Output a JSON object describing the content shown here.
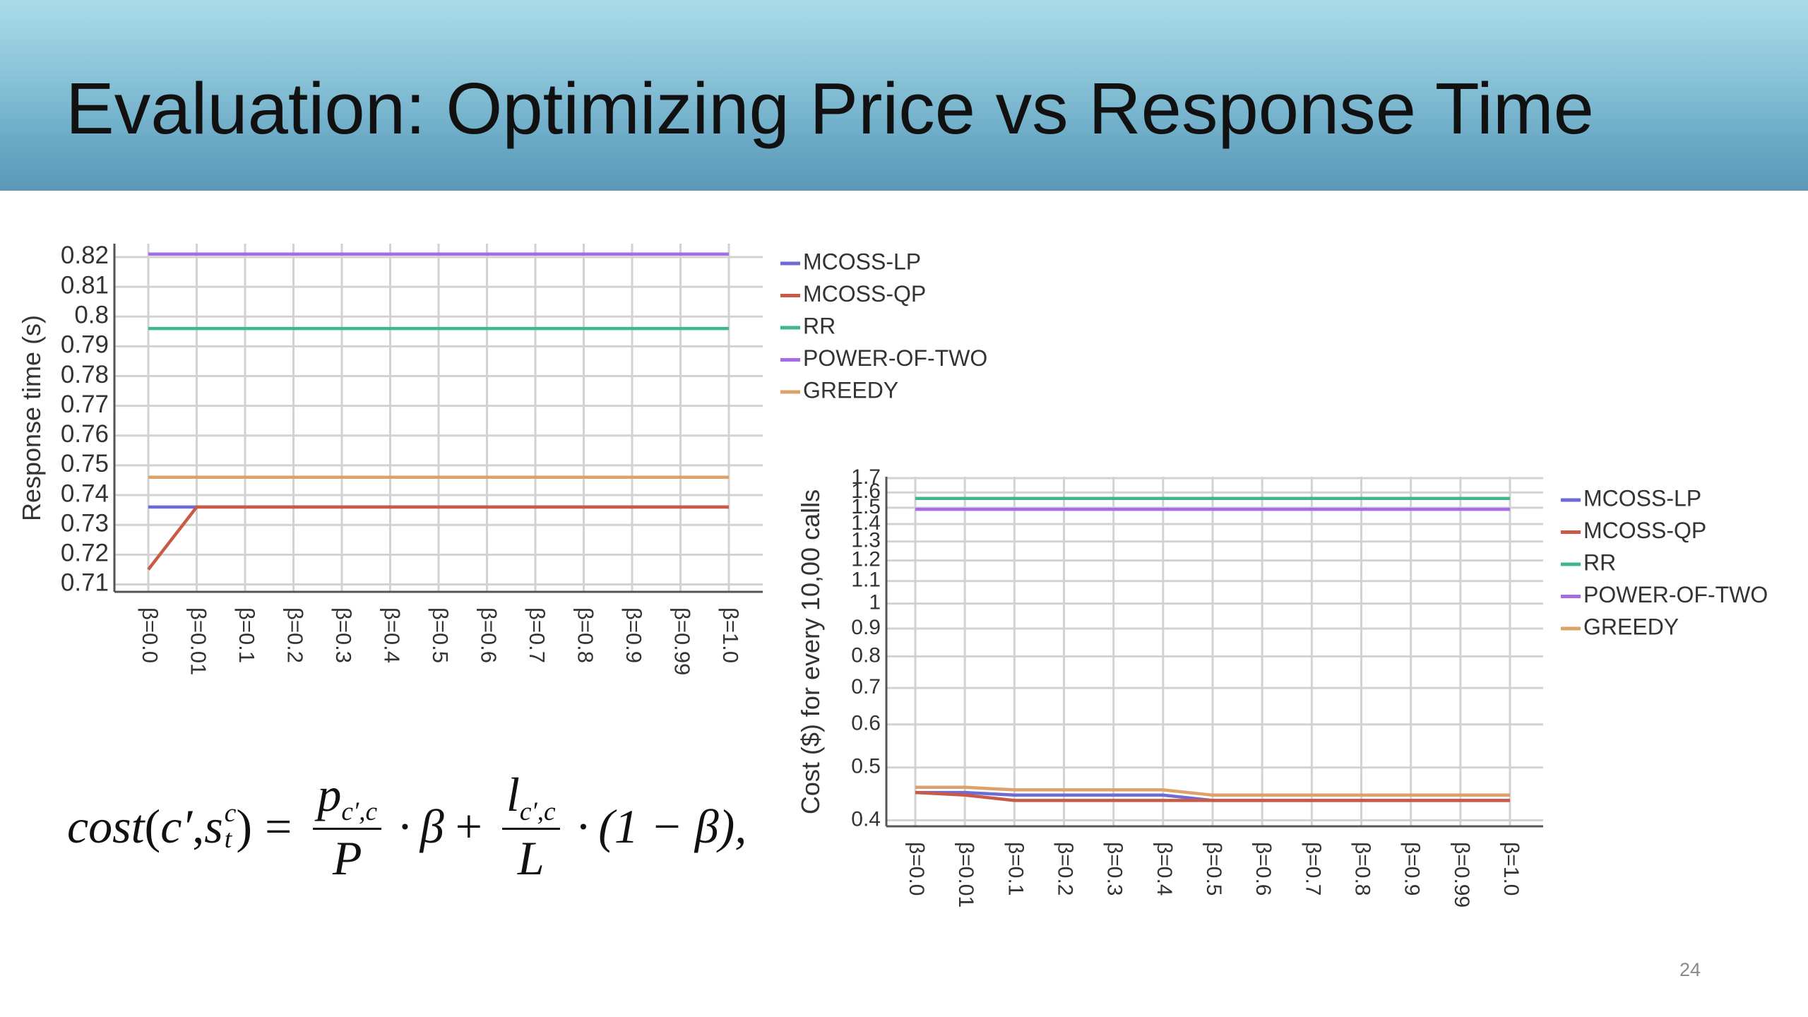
{
  "slide": {
    "title": "Evaluation: Optimizing Price vs Response Time",
    "page_number": "24"
  },
  "formula": {
    "lhs_func": "cost",
    "lhs_open": "(",
    "lhs_arg1": "c′",
    "lhs_comma": ",",
    "lhs_arg2_base": "s",
    "lhs_arg2_sup": "c",
    "lhs_arg2_sub": "t",
    "lhs_close": ")",
    "equals": "=",
    "frac1_num_base": "p",
    "frac1_num_sub": "c′,c",
    "frac1_den": "P",
    "dot1": "·",
    "beta1": "β",
    "plus": "+",
    "frac2_num_base": "l",
    "frac2_num_sub": "c′,c",
    "frac2_den": "L",
    "dot2": "·",
    "tail": "(1 − β),"
  },
  "colors": {
    "MCOSS-LP": "#6d6bd6",
    "MCOSS-QP": "#c95a45",
    "RR": "#3cb88a",
    "POWER-OF-TWO": "#a66ce6",
    "GREEDY": "#dca26a"
  },
  "chart_data": [
    {
      "type": "line",
      "title": "",
      "xlabel": "",
      "ylabel": "Response time (s)",
      "categories": [
        "β=0.0",
        "β=0.01",
        "β=0.1",
        "β=0.2",
        "β=0.3",
        "β=0.4",
        "β=0.5",
        "β=0.6",
        "β=0.7",
        "β=0.8",
        "β=0.9",
        "β=0.99",
        "β=1.0"
      ],
      "yticks": [
        "0.71",
        "0.72",
        "0.73",
        "0.74",
        "0.75",
        "0.76",
        "0.77",
        "0.78",
        "0.79",
        "0.8",
        "0.81",
        "0.82"
      ],
      "ylim": [
        0.7075,
        0.8245
      ],
      "grid": true,
      "legend_position": "top-right-outside",
      "series": [
        {
          "name": "MCOSS-LP",
          "values": [
            0.736,
            0.736,
            0.736,
            0.736,
            0.736,
            0.736,
            0.736,
            0.736,
            0.736,
            0.736,
            0.736,
            0.736,
            0.736
          ]
        },
        {
          "name": "MCOSS-QP",
          "values": [
            0.715,
            0.736,
            0.736,
            0.736,
            0.736,
            0.736,
            0.736,
            0.736,
            0.736,
            0.736,
            0.736,
            0.736,
            0.736
          ]
        },
        {
          "name": "RR",
          "values": [
            0.796,
            0.796,
            0.796,
            0.796,
            0.796,
            0.796,
            0.796,
            0.796,
            0.796,
            0.796,
            0.796,
            0.796,
            0.796
          ]
        },
        {
          "name": "POWER-OF-TWO",
          "values": [
            0.821,
            0.821,
            0.821,
            0.821,
            0.821,
            0.821,
            0.821,
            0.821,
            0.821,
            0.821,
            0.821,
            0.821,
            0.821
          ]
        },
        {
          "name": "GREEDY",
          "values": [
            0.746,
            0.746,
            0.746,
            0.746,
            0.746,
            0.746,
            0.746,
            0.746,
            0.746,
            0.746,
            0.746,
            0.746,
            0.746
          ]
        }
      ]
    },
    {
      "type": "line",
      "title": "",
      "xlabel": "",
      "ylabel": "Cost ($) for every 10,00 calls",
      "categories": [
        "β=0.0",
        "β=0.01",
        "β=0.1",
        "β=0.2",
        "β=0.3",
        "β=0.4",
        "β=0.5",
        "β=0.6",
        "β=0.7",
        "β=0.8",
        "β=0.9",
        "β=0.99",
        "β=1.0"
      ],
      "yticks": [
        "0.4",
        "0.5",
        "0.6",
        "0.7",
        "0.8",
        "0.9",
        "1",
        "1.1",
        "1.2",
        "1.3",
        "1.4",
        "1.5",
        "1.6",
        "1.7"
      ],
      "ylim": [
        0.39,
        1.71
      ],
      "y_scale": "log",
      "grid": true,
      "legend_position": "right",
      "series": [
        {
          "name": "MCOSS-LP",
          "values": [
            0.45,
            0.45,
            0.445,
            0.445,
            0.445,
            0.445,
            0.435,
            0.435,
            0.435,
            0.435,
            0.435,
            0.435,
            0.435
          ]
        },
        {
          "name": "MCOSS-QP",
          "values": [
            0.45,
            0.445,
            0.435,
            0.435,
            0.435,
            0.435,
            0.435,
            0.435,
            0.435,
            0.435,
            0.435,
            0.435,
            0.435
          ]
        },
        {
          "name": "RR",
          "values": [
            1.56,
            1.56,
            1.56,
            1.56,
            1.56,
            1.56,
            1.56,
            1.56,
            1.56,
            1.56,
            1.56,
            1.56,
            1.56
          ]
        },
        {
          "name": "POWER-OF-TWO",
          "values": [
            1.49,
            1.49,
            1.49,
            1.49,
            1.49,
            1.49,
            1.49,
            1.49,
            1.49,
            1.49,
            1.49,
            1.49,
            1.49
          ]
        },
        {
          "name": "GREEDY",
          "values": [
            0.46,
            0.46,
            0.455,
            0.455,
            0.455,
            0.455,
            0.445,
            0.445,
            0.445,
            0.445,
            0.445,
            0.445,
            0.445
          ]
        }
      ]
    }
  ]
}
